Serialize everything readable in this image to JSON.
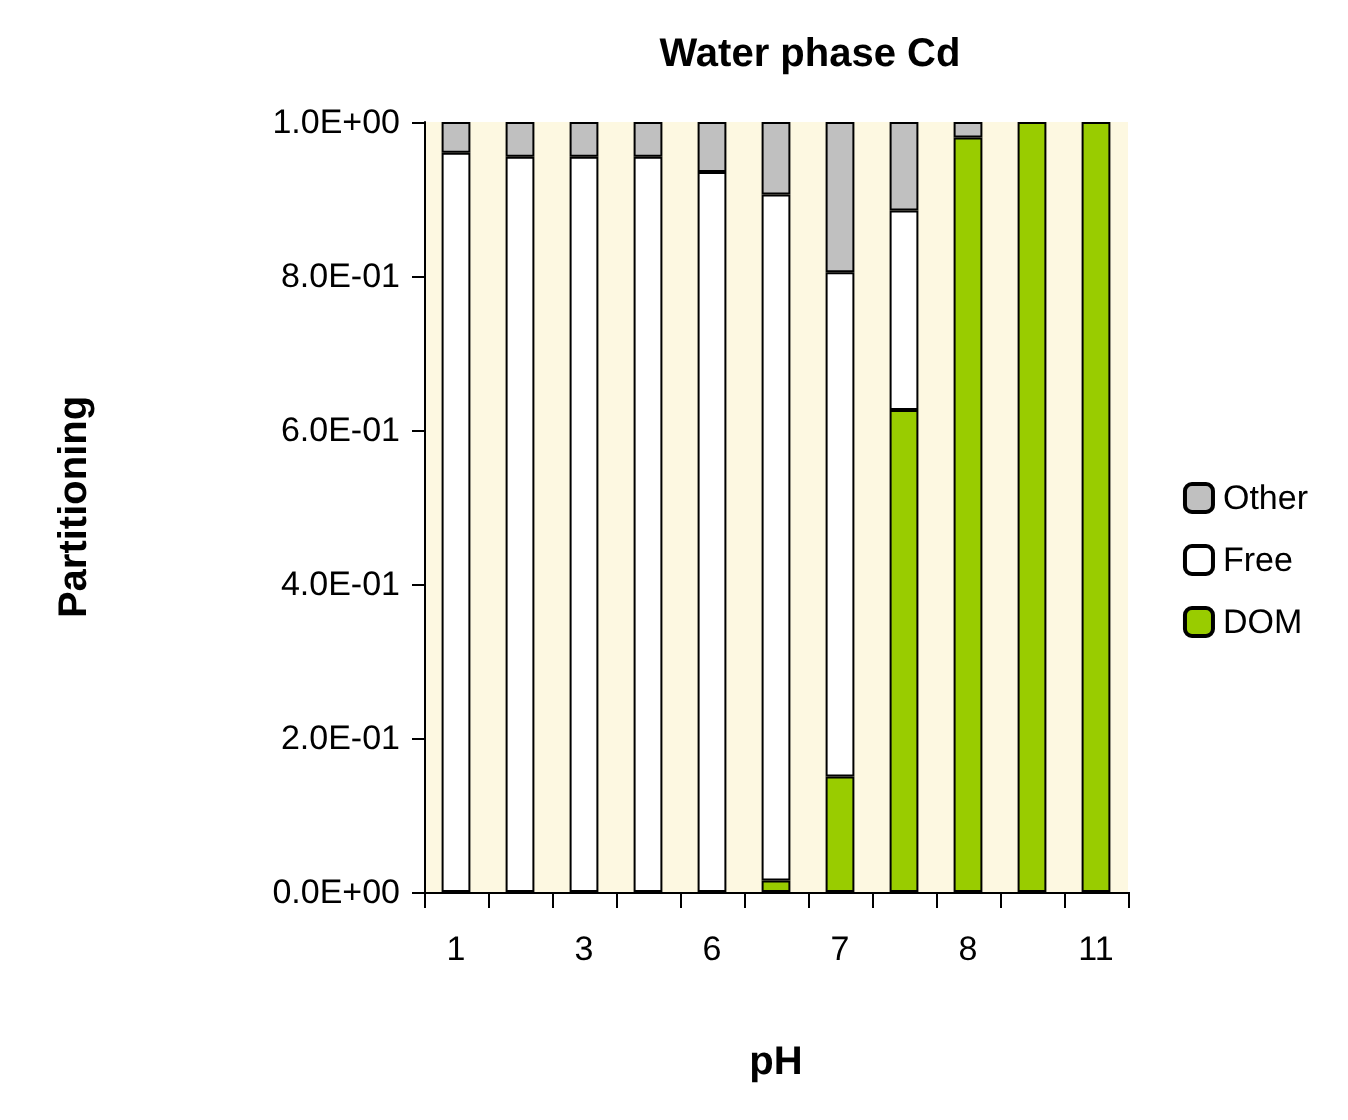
{
  "chart_data": {
    "type": "bar",
    "stacked": true,
    "title": "Water phase Cd",
    "xlabel": "pH",
    "ylabel": "Partitioning",
    "categories": [
      "1",
      null,
      "3",
      null,
      "6",
      null,
      "7",
      null,
      "8",
      null,
      "11"
    ],
    "series": [
      {
        "name": "DOM",
        "color": "#99cc00",
        "values": [
          0,
          0,
          0,
          null,
          0,
          0.015,
          0.15,
          0.626,
          0.98,
          1,
          1
        ]
      },
      {
        "name": "Free",
        "color": "#ffffff",
        "values": [
          0.96,
          0.955,
          0.955,
          0.955,
          0.935,
          0.891,
          0.655,
          0.259,
          null,
          0,
          0
        ]
      },
      {
        "name": "Other",
        "color": "#c0c0c0",
        "values": [
          0.04,
          0.045,
          0.045,
          0.045,
          0.065,
          0.094,
          0.195,
          0.115,
          0.02,
          0,
          0
        ]
      }
    ],
    "ylim": [
      0,
      1
    ],
    "yticks": [
      {
        "value": 0,
        "label": "0.0E+00"
      },
      {
        "value": 0.2,
        "label": "2.0E-01"
      },
      {
        "value": 0.4,
        "label": "4.0E-01"
      },
      {
        "value": 0.6,
        "label": "6.0E-01"
      },
      {
        "value": 0.8,
        "label": "8.0E-01"
      },
      {
        "value": 1,
        "label": "1.0E+00"
      }
    ],
    "grid": false,
    "legend": "right"
  }
}
